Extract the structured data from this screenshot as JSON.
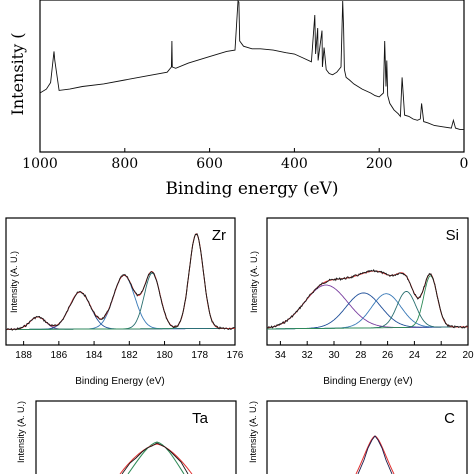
{
  "chart_data": [
    {
      "panel": "survey",
      "type": "line",
      "xlabel": "Binding energy (eV)",
      "ylabel": "Intensity (",
      "xlim": [
        1000,
        0
      ],
      "x_ticks": [
        "1000",
        "800",
        "600",
        "400",
        "200",
        "0"
      ],
      "grid": false,
      "series": [
        {
          "x": [
            1000,
            985,
            975,
            967,
            965,
            955,
            930,
            900,
            850,
            800,
            750,
            700,
            690,
            689,
            688,
            680,
            650,
            600,
            560,
            540,
            533,
            531,
            529,
            520,
            500,
            480,
            450,
            420,
            400,
            380,
            360,
            352,
            350,
            345,
            344,
            335,
            334,
            330,
            325,
            318,
            310,
            300,
            290,
            286,
            284,
            282,
            278,
            270,
            260,
            240,
            220,
            210,
            200,
            190,
            187,
            184,
            182,
            180,
            175,
            165,
            155,
            150,
            146,
            140,
            130,
            120,
            110,
            103,
            100,
            95,
            85,
            70,
            50,
            30,
            25,
            20,
            10,
            0
          ],
          "y": [
            0.3,
            0.33,
            0.38,
            0.62,
            0.55,
            0.32,
            0.33,
            0.35,
            0.37,
            0.4,
            0.43,
            0.46,
            0.5,
            0.7,
            0.5,
            0.49,
            0.53,
            0.58,
            0.62,
            0.63,
            1.3,
            1.0,
            0.7,
            0.66,
            0.64,
            0.64,
            0.63,
            0.61,
            0.6,
            0.57,
            0.54,
            0.9,
            0.6,
            0.8,
            0.55,
            0.78,
            0.5,
            0.65,
            0.48,
            0.45,
            0.44,
            0.46,
            0.5,
            1.3,
            0.8,
            0.48,
            0.42,
            0.4,
            0.37,
            0.33,
            0.3,
            0.28,
            0.27,
            0.3,
            0.7,
            0.35,
            0.55,
            0.28,
            0.22,
            0.17,
            0.14,
            0.12,
            0.42,
            0.13,
            0.12,
            0.1,
            0.09,
            0.1,
            0.22,
            0.08,
            0.07,
            0.05,
            0.04,
            0.03,
            0.09,
            0.03,
            0.02,
            0.02
          ]
        }
      ]
    },
    {
      "panel": "Zr",
      "type": "line",
      "title": "Zr",
      "xlabel": "Binding Energy (eV)",
      "ylabel": "Intensity (A. U.)",
      "xlim": [
        189,
        176
      ],
      "x_ticks": [
        "188",
        "186",
        "184",
        "182",
        "180",
        "178",
        "176"
      ],
      "peaks": [
        {
          "center": 187.2,
          "height": 0.12,
          "width": 0.45
        },
        {
          "center": 184.8,
          "height": 0.36,
          "width": 0.6
        },
        {
          "center": 182.3,
          "height": 0.52,
          "width": 0.6
        },
        {
          "center": 180.7,
          "height": 0.54,
          "width": 0.45
        },
        {
          "center": 178.2,
          "height": 0.92,
          "width": 0.4
        }
      ]
    },
    {
      "panel": "Si",
      "type": "line",
      "title": "Si",
      "xlabel": "Binding Energy (eV)",
      "ylabel": "Intensity (A. U.)",
      "xlim": [
        35,
        20
      ],
      "x_ticks": [
        "34",
        "32",
        "30",
        "28",
        "26",
        "24",
        "22",
        "20"
      ],
      "peaks": [
        {
          "center": 30.6,
          "height": 0.42,
          "width": 1.6
        },
        {
          "center": 27.8,
          "height": 0.34,
          "width": 1.3
        },
        {
          "center": 26.1,
          "height": 0.33,
          "width": 1.1
        },
        {
          "center": 24.6,
          "height": 0.35,
          "width": 0.7
        },
        {
          "center": 22.8,
          "height": 0.5,
          "width": 0.5
        }
      ]
    },
    {
      "panel": "Ta",
      "type": "line",
      "title": "Ta",
      "ylabel": "Intensity (A. U.)",
      "partial": true
    },
    {
      "panel": "C",
      "type": "line",
      "title": "C",
      "ylabel": "Intensity (A. U.)",
      "partial": true
    }
  ]
}
